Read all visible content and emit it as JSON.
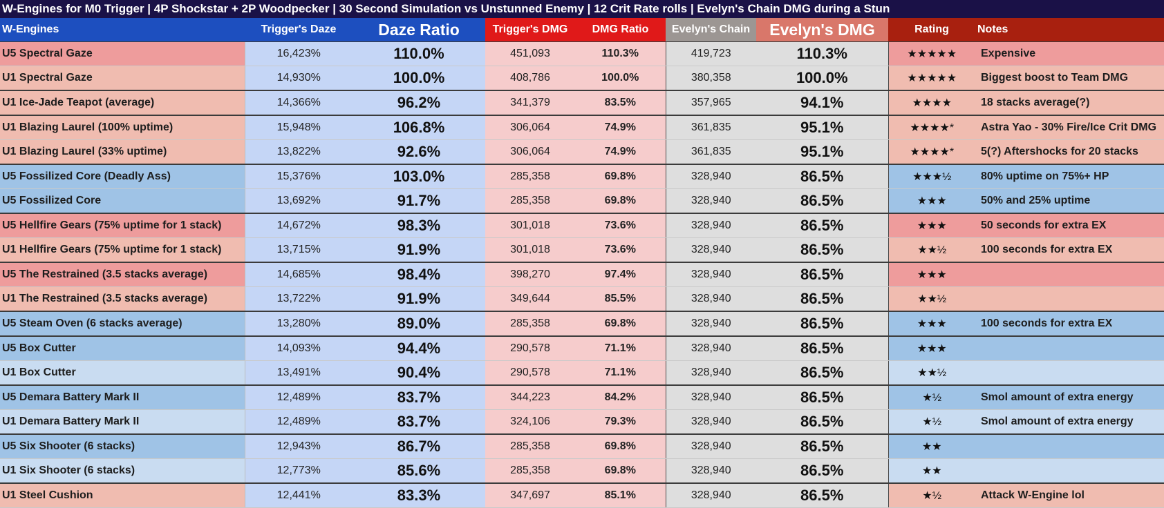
{
  "title": "W-Engines for M0 Trigger | 4P Shockstar + 2P Woodpecker | 30 Second Simulation vs Unstunned Enemy | 12 Crit Rate rolls | Evelyn's Chain DMG during a Stun",
  "headers": [
    "W-Engines",
    "Trigger's Daze",
    "Daze Ratio",
    "Trigger's DMG",
    "DMG Ratio",
    "Evelyn's Chain",
    "Evelyn's DMG",
    "Rating",
    "Notes"
  ],
  "colors": {
    "header_blue": "#1d4fbf",
    "header_red": "#e01919",
    "header_grey": "#9c9693",
    "header_salmon": "#d9776a",
    "header_darkred": "#a8200f",
    "pink_strong": "#ee9c9c",
    "pink_light": "#f0bcb0",
    "blue_strong": "#9fc3e6",
    "blue_light": "#c9dcf1",
    "daze_col": "#c5d6f6",
    "dmg_col": "#f6cccc",
    "chain_col": "#dedede"
  },
  "rows": [
    {
      "name": "U5 Spectral Gaze",
      "daze": "16,423%",
      "daze_ratio": "110.0%",
      "trig_dmg": "451,093",
      "dmg_ratio": "110.3%",
      "chain": "419,723",
      "evelyn": "110.3%",
      "rating": "★★★★★",
      "notes": "Expensive",
      "tone": "pink_strong",
      "group_start": false
    },
    {
      "name": "U1 Spectral Gaze",
      "daze": "14,930%",
      "daze_ratio": "100.0%",
      "trig_dmg": "408,786",
      "dmg_ratio": "100.0%",
      "chain": "380,358",
      "evelyn": "100.0%",
      "rating": "★★★★★",
      "notes": "Biggest boost to Team DMG",
      "tone": "pink_light",
      "group_start": false
    },
    {
      "name": "U1 Ice-Jade Teapot (average)",
      "daze": "14,366%",
      "daze_ratio": "96.2%",
      "trig_dmg": "341,379",
      "dmg_ratio": "83.5%",
      "chain": "357,965",
      "evelyn": "94.1%",
      "rating": "★★★★",
      "notes": "18 stacks average(?)",
      "tone": "pink_light",
      "group_start": true
    },
    {
      "name": "U1 Blazing Laurel (100% uptime)",
      "daze": "15,948%",
      "daze_ratio": "106.8%",
      "trig_dmg": "306,064",
      "dmg_ratio": "74.9%",
      "chain": "361,835",
      "evelyn": "95.1%",
      "rating": "★★★★*",
      "notes": "Astra Yao - 30% Fire/Ice Crit DMG",
      "tone": "pink_light",
      "group_start": true
    },
    {
      "name": "U1 Blazing Laurel (33% uptime)",
      "daze": "13,822%",
      "daze_ratio": "92.6%",
      "trig_dmg": "306,064",
      "dmg_ratio": "74.9%",
      "chain": "361,835",
      "evelyn": "95.1%",
      "rating": "★★★★*",
      "notes": "5(?) Aftershocks for 20 stacks",
      "tone": "pink_light",
      "group_start": false
    },
    {
      "name": "U5 Fossilized Core (Deadly Ass)",
      "daze": "15,376%",
      "daze_ratio": "103.0%",
      "trig_dmg": "285,358",
      "dmg_ratio": "69.8%",
      "chain": "328,940",
      "evelyn": "86.5%",
      "rating": "★★★½",
      "notes": "80% uptime on 75%+ HP",
      "tone": "blue_strong",
      "group_start": true
    },
    {
      "name": "U5 Fossilized Core",
      "daze": "13,692%",
      "daze_ratio": "91.7%",
      "trig_dmg": "285,358",
      "dmg_ratio": "69.8%",
      "chain": "328,940",
      "evelyn": "86.5%",
      "rating": "★★★",
      "notes": "50% and 25% uptime",
      "tone": "blue_strong",
      "group_start": false
    },
    {
      "name": "U5 Hellfire Gears (75% uptime for 1 stack)",
      "daze": "14,672%",
      "daze_ratio": "98.3%",
      "trig_dmg": "301,018",
      "dmg_ratio": "73.6%",
      "chain": "328,940",
      "evelyn": "86.5%",
      "rating": "★★★",
      "notes": "50 seconds for extra EX",
      "tone": "pink_strong",
      "group_start": true
    },
    {
      "name": "U1 Hellfire Gears (75% uptime for 1 stack)",
      "daze": "13,715%",
      "daze_ratio": "91.9%",
      "trig_dmg": "301,018",
      "dmg_ratio": "73.6%",
      "chain": "328,940",
      "evelyn": "86.5%",
      "rating": "★★½",
      "notes": "100 seconds for extra EX",
      "tone": "pink_light",
      "group_start": false
    },
    {
      "name": "U5 The Restrained (3.5 stacks average)",
      "daze": "14,685%",
      "daze_ratio": "98.4%",
      "trig_dmg": "398,270",
      "dmg_ratio": "97.4%",
      "chain": "328,940",
      "evelyn": "86.5%",
      "rating": "★★★",
      "notes": "",
      "tone": "pink_strong",
      "group_start": true
    },
    {
      "name": "U1 The Restrained (3.5 stacks average)",
      "daze": "13,722%",
      "daze_ratio": "91.9%",
      "trig_dmg": "349,644",
      "dmg_ratio": "85.5%",
      "chain": "328,940",
      "evelyn": "86.5%",
      "rating": "★★½",
      "notes": "",
      "tone": "pink_light",
      "group_start": false
    },
    {
      "name": "U5 Steam Oven (6 stacks average)",
      "daze": "13,280%",
      "daze_ratio": "89.0%",
      "trig_dmg": "285,358",
      "dmg_ratio": "69.8%",
      "chain": "328,940",
      "evelyn": "86.5%",
      "rating": "★★★",
      "notes": "100 seconds for extra EX",
      "tone": "blue_strong",
      "group_start": true
    },
    {
      "name": "U5 Box Cutter",
      "daze": "14,093%",
      "daze_ratio": "94.4%",
      "trig_dmg": "290,578",
      "dmg_ratio": "71.1%",
      "chain": "328,940",
      "evelyn": "86.5%",
      "rating": "★★★",
      "notes": "",
      "tone": "blue_strong",
      "group_start": true
    },
    {
      "name": "U1 Box Cutter",
      "daze": "13,491%",
      "daze_ratio": "90.4%",
      "trig_dmg": "290,578",
      "dmg_ratio": "71.1%",
      "chain": "328,940",
      "evelyn": "86.5%",
      "rating": "★★½",
      "notes": "",
      "tone": "blue_light",
      "group_start": false
    },
    {
      "name": "U5 Demara Battery Mark II",
      "daze": "12,489%",
      "daze_ratio": "83.7%",
      "trig_dmg": "344,223",
      "dmg_ratio": "84.2%",
      "chain": "328,940",
      "evelyn": "86.5%",
      "rating": "★½",
      "notes": "Smol amount of extra energy",
      "tone": "blue_strong",
      "group_start": true
    },
    {
      "name": "U1 Demara Battery Mark II",
      "daze": "12,489%",
      "daze_ratio": "83.7%",
      "trig_dmg": "324,106",
      "dmg_ratio": "79.3%",
      "chain": "328,940",
      "evelyn": "86.5%",
      "rating": "★½",
      "notes": "Smol amount of extra energy",
      "tone": "blue_light",
      "group_start": false
    },
    {
      "name": "U5 Six Shooter (6 stacks)",
      "daze": "12,943%",
      "daze_ratio": "86.7%",
      "trig_dmg": "285,358",
      "dmg_ratio": "69.8%",
      "chain": "328,940",
      "evelyn": "86.5%",
      "rating": "★★",
      "notes": "",
      "tone": "blue_strong",
      "group_start": true
    },
    {
      "name": "U1 Six Shooter (6 stacks)",
      "daze": "12,773%",
      "daze_ratio": "85.6%",
      "trig_dmg": "285,358",
      "dmg_ratio": "69.8%",
      "chain": "328,940",
      "evelyn": "86.5%",
      "rating": "★★",
      "notes": "",
      "tone": "blue_light",
      "group_start": false
    },
    {
      "name": "U1 Steel Cushion",
      "daze": "12,441%",
      "daze_ratio": "83.3%",
      "trig_dmg": "347,697",
      "dmg_ratio": "85.1%",
      "chain": "328,940",
      "evelyn": "86.5%",
      "rating": "★½",
      "notes": "Attack W-Engine lol",
      "tone": "pink_light",
      "group_start": true
    }
  ]
}
